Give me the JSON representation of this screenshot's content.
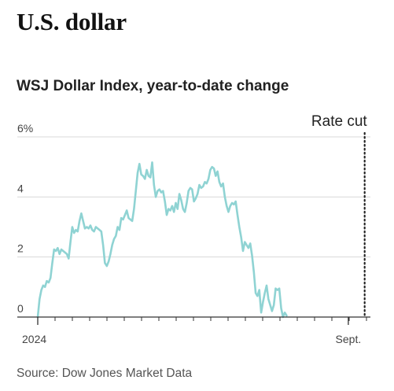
{
  "headline": "U.S. dollar",
  "source": "Source: Dow Jones Market Data",
  "colors": {
    "line": "#8fd3d3",
    "grid": "#d8d8d8",
    "axis": "#333333",
    "annotation": "#222222"
  },
  "chart_data": {
    "type": "line",
    "title": "WSJ Dollar Index, year-to-date change",
    "xlabel": "",
    "ylabel": "",
    "x_unit": "trading day index from Jan. 2, 2024",
    "ylim": [
      0,
      6
    ],
    "yticks": [
      {
        "value": 0,
        "label": "0"
      },
      {
        "value": 2,
        "label": "2"
      },
      {
        "value": 4,
        "label": "4"
      },
      {
        "value": 6,
        "label": "6%"
      }
    ],
    "xticks": [
      {
        "x": 0,
        "label": "2024"
      },
      {
        "x": 171,
        "label": "Sept."
      }
    ],
    "xlim": [
      0,
      181
    ],
    "grid": true,
    "legend": "none",
    "annotations": [
      {
        "x": 180,
        "label": "Rate cut",
        "style": "dotted vertical line"
      }
    ],
    "series": [
      {
        "values": [
          [
            0,
            0.0
          ],
          [
            1,
            0.6
          ],
          [
            2,
            0.9
          ],
          [
            3,
            1.05
          ],
          [
            4,
            1.0
          ],
          [
            5,
            1.2
          ],
          [
            6,
            1.15
          ],
          [
            7,
            1.3
          ],
          [
            8,
            1.8
          ],
          [
            9,
            2.25
          ],
          [
            10,
            2.2
          ],
          [
            11,
            2.3
          ],
          [
            12,
            2.1
          ],
          [
            13,
            2.25
          ],
          [
            14,
            2.2
          ],
          [
            15,
            2.15
          ],
          [
            16,
            2.1
          ],
          [
            17,
            1.95
          ],
          [
            18,
            2.5
          ],
          [
            19,
            3.0
          ],
          [
            20,
            2.8
          ],
          [
            21,
            2.9
          ],
          [
            22,
            2.85
          ],
          [
            23,
            3.2
          ],
          [
            24,
            3.45
          ],
          [
            25,
            3.2
          ],
          [
            26,
            2.95
          ],
          [
            27,
            3.0
          ],
          [
            28,
            2.95
          ],
          [
            29,
            3.05
          ],
          [
            30,
            2.9
          ],
          [
            31,
            2.85
          ],
          [
            32,
            3.0
          ],
          [
            33,
            2.95
          ],
          [
            34,
            2.9
          ],
          [
            35,
            2.85
          ],
          [
            36,
            2.4
          ],
          [
            37,
            1.8
          ],
          [
            38,
            1.7
          ],
          [
            39,
            1.85
          ],
          [
            40,
            2.1
          ],
          [
            41,
            2.4
          ],
          [
            42,
            2.6
          ],
          [
            43,
            2.7
          ],
          [
            44,
            3.0
          ],
          [
            45,
            2.9
          ],
          [
            46,
            3.3
          ],
          [
            47,
            3.25
          ],
          [
            48,
            3.4
          ],
          [
            49,
            3.55
          ],
          [
            50,
            3.3
          ],
          [
            51,
            3.25
          ],
          [
            52,
            3.2
          ],
          [
            53,
            3.6
          ],
          [
            54,
            4.2
          ],
          [
            55,
            4.8
          ],
          [
            56,
            5.1
          ],
          [
            57,
            4.75
          ],
          [
            58,
            4.7
          ],
          [
            59,
            4.6
          ],
          [
            60,
            4.9
          ],
          [
            61,
            4.7
          ],
          [
            62,
            4.65
          ],
          [
            63,
            5.15
          ],
          [
            64,
            4.4
          ],
          [
            65,
            4.0
          ],
          [
            66,
            4.2
          ],
          [
            67,
            4.25
          ],
          [
            68,
            4.15
          ],
          [
            69,
            4.2
          ],
          [
            70,
            3.85
          ],
          [
            71,
            3.4
          ],
          [
            72,
            3.6
          ],
          [
            73,
            3.55
          ],
          [
            74,
            3.7
          ],
          [
            75,
            3.5
          ],
          [
            76,
            3.8
          ],
          [
            77,
            3.6
          ],
          [
            78,
            4.1
          ],
          [
            79,
            3.9
          ],
          [
            80,
            3.6
          ],
          [
            81,
            3.5
          ],
          [
            82,
            3.8
          ],
          [
            83,
            4.2
          ],
          [
            84,
            4.3
          ],
          [
            85,
            4.25
          ],
          [
            86,
            3.85
          ],
          [
            87,
            3.95
          ],
          [
            88,
            4.1
          ],
          [
            89,
            4.4
          ],
          [
            90,
            4.3
          ],
          [
            91,
            4.35
          ],
          [
            92,
            4.5
          ],
          [
            93,
            4.45
          ],
          [
            94,
            4.6
          ],
          [
            95,
            4.9
          ],
          [
            96,
            5.0
          ],
          [
            97,
            4.95
          ],
          [
            98,
            4.7
          ],
          [
            99,
            4.85
          ],
          [
            100,
            4.5
          ],
          [
            101,
            4.35
          ],
          [
            102,
            4.45
          ],
          [
            103,
            4.0
          ],
          [
            104,
            3.7
          ],
          [
            105,
            3.5
          ],
          [
            106,
            3.7
          ],
          [
            107,
            3.8
          ],
          [
            108,
            3.75
          ],
          [
            109,
            3.85
          ],
          [
            110,
            3.4
          ],
          [
            111,
            3.0
          ],
          [
            112,
            2.65
          ],
          [
            113,
            2.2
          ],
          [
            114,
            2.5
          ],
          [
            115,
            2.4
          ],
          [
            116,
            2.3
          ],
          [
            117,
            2.45
          ],
          [
            118,
            2.05
          ],
          [
            119,
            1.5
          ],
          [
            120,
            0.8
          ],
          [
            121,
            0.7
          ],
          [
            122,
            0.9
          ],
          [
            123,
            0.15
          ],
          [
            124,
            0.5
          ],
          [
            125,
            0.8
          ],
          [
            126,
            1.05
          ],
          [
            127,
            0.6
          ],
          [
            128,
            0.4
          ],
          [
            129,
            0.2
          ],
          [
            130,
            0.4
          ],
          [
            131,
            0.95
          ],
          [
            132,
            0.9
          ],
          [
            133,
            0.95
          ],
          [
            134,
            0.3
          ],
          [
            135,
            0.0
          ],
          [
            136,
            0.15
          ],
          [
            137,
            0.05
          ]
        ]
      }
    ]
  }
}
